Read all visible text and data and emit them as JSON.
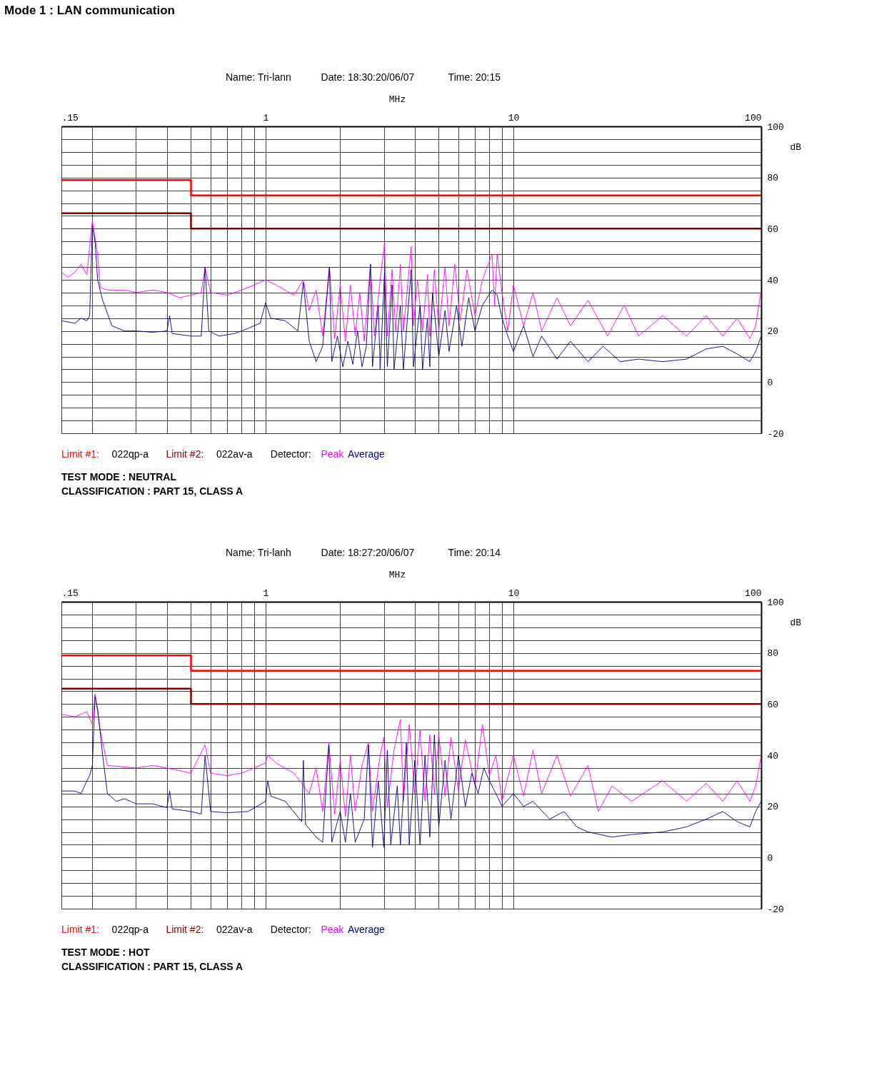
{
  "chart_data": [
    {
      "type": "line",
      "title": "Mode 1 : LAN communication",
      "xlabel": "MHz",
      "ylabel": "dB",
      "log": "x",
      "grid": true,
      "xlim": [
        0.15,
        100
      ],
      "ylim": [
        -20,
        100
      ],
      "xticks": [
        {
          "value": 0.15,
          "label": ".15"
        },
        {
          "value": 0.2,
          "label": null
        },
        {
          "value": 0.3,
          "label": null
        },
        {
          "value": 0.4,
          "label": null
        },
        {
          "value": 0.5,
          "label": null
        },
        {
          "value": 0.6,
          "label": null
        },
        {
          "value": 0.7,
          "label": null
        },
        {
          "value": 0.8,
          "label": null
        },
        {
          "value": 0.9,
          "label": null
        },
        1,
        {
          "value": 2,
          "label": null
        },
        {
          "value": 3,
          "label": null
        },
        {
          "value": 4,
          "label": null
        },
        {
          "value": 5,
          "label": null
        },
        {
          "value": 6,
          "label": null
        },
        {
          "value": 7,
          "label": null
        },
        {
          "value": 8,
          "label": null
        },
        {
          "value": 9,
          "label": null
        },
        10,
        100
      ],
      "yticks": [
        -20,
        {
          "value": -15,
          "label": null
        },
        {
          "value": -10,
          "label": null
        },
        {
          "value": -5,
          "label": null
        },
        0,
        {
          "value": 5,
          "label": null
        },
        {
          "value": 10,
          "label": null
        },
        {
          "value": 15,
          "label": null
        },
        20,
        {
          "value": 25,
          "label": null
        },
        {
          "value": 30,
          "label": null
        },
        {
          "value": 35,
          "label": null
        },
        40,
        {
          "value": 45,
          "label": null
        },
        {
          "value": 50,
          "label": null
        },
        {
          "value": 55,
          "label": null
        },
        60,
        {
          "value": 65,
          "label": null
        },
        {
          "value": 70,
          "label": null
        },
        {
          "value": 75,
          "label": null
        },
        80,
        {
          "value": 85,
          "label": null
        },
        {
          "value": 90,
          "label": null
        },
        {
          "value": 95,
          "label": null
        },
        100
      ],
      "annotations": [
        "Name: Tri-lann",
        "Date: 18:30:20/06/07",
        "Time: 20:15",
        "022qp-a",
        "022av-a",
        "Detector:",
        "TEST MODE : NEUTRAL",
        "CLASSIFICATION : PART 15, CLASS A"
      ],
      "series": [
        {
          "name": "Limit #1:",
          "type": "step",
          "color": "#ff0000",
          "x": [
            0.15,
            0.5,
            100
          ],
          "values": [
            79,
            73,
            73
          ]
        },
        {
          "name": "Limit #2:",
          "type": "step",
          "color": "#800000",
          "x": [
            0.15,
            0.5,
            100
          ],
          "values": [
            66,
            60,
            60
          ]
        },
        {
          "name": "Peak",
          "type": "line",
          "color": "#ff00ff",
          "x": [
            0.15,
            0.16,
            0.17,
            0.18,
            0.19,
            0.2,
            0.21,
            0.215,
            0.23,
            0.27,
            0.3,
            0.35,
            0.4,
            0.45,
            0.5,
            0.55,
            0.57,
            0.6,
            0.7,
            0.8,
            0.9,
            1.0,
            1.1,
            1.3,
            1.42,
            1.5,
            1.6,
            1.7,
            1.81,
            1.9,
            2.0,
            2.1,
            2.2,
            2.3,
            2.4,
            2.5,
            2.65,
            2.75,
            2.9,
            3.02,
            3.1,
            3.24,
            3.35,
            3.5,
            3.6,
            3.87,
            3.95,
            4.1,
            4.3,
            4.5,
            4.6,
            4.8,
            5.0,
            5.3,
            5.5,
            5.8,
            6.1,
            6.5,
            7.0,
            7.5,
            8.2,
            8.4,
            8.6,
            9.0,
            9.5,
            10,
            11,
            12,
            13,
            15,
            17,
            20,
            24,
            28,
            32,
            40,
            50,
            60,
            70,
            80,
            90,
            95,
            100
          ],
          "values": [
            43,
            41,
            43,
            46,
            42,
            63,
            50,
            37,
            36,
            36,
            35,
            36,
            35,
            33,
            34,
            35,
            45,
            35,
            34,
            36,
            38,
            40,
            38,
            34,
            40,
            28,
            36,
            18,
            45,
            17,
            38,
            16,
            38,
            18,
            35,
            16,
            46,
            18,
            40,
            54,
            18,
            44,
            20,
            46,
            20,
            53,
            22,
            40,
            20,
            42,
            18,
            44,
            20,
            45,
            22,
            46,
            24,
            44,
            26,
            40,
            50,
            30,
            50,
            35,
            20,
            38,
            22,
            35,
            20,
            33,
            22,
            32,
            18,
            30,
            18,
            26,
            18,
            26,
            18,
            25,
            17,
            22,
            36
          ]
        },
        {
          "name": "Average",
          "type": "line",
          "color": "#000080",
          "x": [
            0.15,
            0.17,
            0.18,
            0.19,
            0.195,
            0.2,
            0.205,
            0.21,
            0.22,
            0.24,
            0.27,
            0.3,
            0.35,
            0.4,
            0.41,
            0.42,
            0.5,
            0.55,
            0.57,
            0.59,
            0.65,
            0.75,
            0.85,
            0.95,
            1.0,
            1.05,
            1.2,
            1.35,
            1.42,
            1.5,
            1.6,
            1.7,
            1.81,
            1.85,
            1.95,
            2.05,
            2.15,
            2.25,
            2.35,
            2.45,
            2.55,
            2.65,
            2.7,
            2.85,
            2.9,
            3.02,
            3.1,
            3.24,
            3.3,
            3.5,
            3.6,
            3.87,
            3.95,
            4.2,
            4.3,
            4.5,
            4.6,
            4.72,
            5.0,
            5.3,
            5.5,
            5.9,
            6.2,
            6.6,
            7.0,
            7.5,
            8.2,
            8.6,
            9.0,
            9.5,
            10,
            11,
            12,
            13,
            15,
            17,
            20,
            23,
            27,
            32,
            40,
            50,
            60,
            70,
            80,
            90,
            95,
            100
          ],
          "values": [
            24,
            23,
            25,
            24,
            26,
            61,
            55,
            40,
            32,
            22,
            20,
            20,
            19.5,
            20,
            26,
            19,
            18,
            18,
            45,
            20,
            18,
            19,
            21,
            23,
            31,
            25,
            24,
            20,
            39,
            16,
            8,
            14,
            45,
            8,
            18,
            6,
            16,
            7,
            20,
            6,
            14,
            46,
            6,
            30,
            5,
            43,
            6,
            38,
            5,
            30,
            5,
            44,
            6,
            30,
            5,
            25,
            6,
            35,
            10,
            28,
            12,
            30,
            14,
            33,
            20,
            30,
            36,
            34,
            25,
            18,
            12,
            22,
            10,
            18,
            9,
            16,
            8,
            14,
            8,
            9,
            8,
            9,
            13,
            14,
            11,
            8,
            12,
            18
          ]
        }
      ]
    },
    {
      "type": "line",
      "xlabel": "MHz",
      "ylabel": "dB",
      "log": "x",
      "grid": true,
      "xlim": [
        0.15,
        100
      ],
      "ylim": [
        -20,
        100
      ],
      "xticks": [
        {
          "value": 0.15,
          "label": ".15"
        },
        {
          "value": 0.2,
          "label": null
        },
        {
          "value": 0.3,
          "label": null
        },
        {
          "value": 0.4,
          "label": null
        },
        {
          "value": 0.5,
          "label": null
        },
        {
          "value": 0.6,
          "label": null
        },
        {
          "value": 0.7,
          "label": null
        },
        {
          "value": 0.8,
          "label": null
        },
        {
          "value": 0.9,
          "label": null
        },
        1,
        {
          "value": 2,
          "label": null
        },
        {
          "value": 3,
          "label": null
        },
        {
          "value": 4,
          "label": null
        },
        {
          "value": 5,
          "label": null
        },
        {
          "value": 6,
          "label": null
        },
        {
          "value": 7,
          "label": null
        },
        {
          "value": 8,
          "label": null
        },
        {
          "value": 9,
          "label": null
        },
        10,
        100
      ],
      "yticks": [
        -20,
        {
          "value": -15,
          "label": null
        },
        {
          "value": -10,
          "label": null
        },
        {
          "value": -5,
          "label": null
        },
        0,
        {
          "value": 5,
          "label": null
        },
        {
          "value": 10,
          "label": null
        },
        {
          "value": 15,
          "label": null
        },
        20,
        {
          "value": 25,
          "label": null
        },
        {
          "value": 30,
          "label": null
        },
        {
          "value": 35,
          "label": null
        },
        40,
        {
          "value": 45,
          "label": null
        },
        {
          "value": 50,
          "label": null
        },
        {
          "value": 55,
          "label": null
        },
        60,
        {
          "value": 65,
          "label": null
        },
        {
          "value": 70,
          "label": null
        },
        {
          "value": 75,
          "label": null
        },
        80,
        {
          "value": 85,
          "label": null
        },
        {
          "value": 90,
          "label": null
        },
        {
          "value": 95,
          "label": null
        },
        100
      ],
      "annotations": [
        "Name: Tri-lanh",
        "Date: 18:27:20/06/07",
        "Time: 20:14",
        "022qp-a",
        "022av-a",
        "Detector:",
        "TEST MODE : HOT",
        "CLASSIFICATION : PART 15, CLASS A"
      ],
      "series": [
        {
          "name": "Limit #1:",
          "type": "step",
          "color": "#ff0000",
          "x": [
            0.15,
            0.5,
            100
          ],
          "values": [
            79,
            73,
            73
          ]
        },
        {
          "name": "Limit #2:",
          "type": "step",
          "color": "#800000",
          "x": [
            0.15,
            0.5,
            100
          ],
          "values": [
            66,
            60,
            60
          ]
        },
        {
          "name": "Peak",
          "type": "line",
          "color": "#ff00ff",
          "x": [
            0.15,
            0.17,
            0.19,
            0.2,
            0.205,
            0.215,
            0.23,
            0.3,
            0.35,
            0.4,
            0.5,
            0.57,
            0.6,
            0.7,
            0.8,
            0.9,
            1.0,
            1.02,
            1.1,
            1.3,
            1.5,
            1.6,
            1.7,
            1.8,
            1.9,
            2.0,
            2.1,
            2.2,
            2.3,
            2.45,
            2.6,
            2.7,
            2.9,
            3.0,
            3.1,
            3.3,
            3.5,
            3.6,
            3.8,
            4.0,
            4.2,
            4.4,
            4.6,
            4.8,
            5.0,
            5.3,
            5.6,
            6.0,
            6.4,
            7.0,
            7.5,
            8.0,
            8.5,
            9,
            10,
            11,
            12,
            13,
            15,
            17,
            20,
            22,
            25,
            30,
            40,
            50,
            60,
            70,
            80,
            90,
            95,
            100
          ],
          "values": [
            56,
            55,
            57,
            52,
            64,
            50,
            36,
            35,
            36,
            35,
            33,
            44,
            33,
            32,
            33,
            35,
            37,
            40,
            37,
            33,
            25,
            35,
            18,
            45,
            17,
            38,
            16,
            40,
            18,
            36,
            45,
            18,
            40,
            47,
            20,
            42,
            54,
            22,
            52,
            25,
            50,
            22,
            48,
            25,
            48,
            24,
            47,
            26,
            46,
            28,
            52,
            32,
            40,
            22,
            40,
            24,
            42,
            25,
            40,
            24,
            36,
            18,
            28,
            22,
            30,
            22,
            29,
            22,
            30,
            22,
            28,
            40
          ]
        },
        {
          "name": "Average",
          "type": "line",
          "color": "#000080",
          "x": [
            0.15,
            0.17,
            0.18,
            0.19,
            0.195,
            0.2,
            0.205,
            0.21,
            0.22,
            0.23,
            0.25,
            0.27,
            0.3,
            0.35,
            0.4,
            0.41,
            0.42,
            0.5,
            0.55,
            0.57,
            0.6,
            0.7,
            0.85,
            1.0,
            1.02,
            1.05,
            1.2,
            1.4,
            1.42,
            1.45,
            1.6,
            1.7,
            1.8,
            1.85,
            2.0,
            2.1,
            2.2,
            2.3,
            2.5,
            2.6,
            2.7,
            2.85,
            3.0,
            3.1,
            3.2,
            3.4,
            3.5,
            3.7,
            3.8,
            4.0,
            4.2,
            4.4,
            4.6,
            4.8,
            5.0,
            5.3,
            5.6,
            6.0,
            6.4,
            6.8,
            7.2,
            7.6,
            8.0,
            8.5,
            9,
            10,
            11,
            12,
            14,
            16,
            18,
            20,
            25,
            30,
            40,
            50,
            60,
            70,
            80,
            90,
            95,
            100
          ],
          "values": [
            26,
            26,
            25,
            30,
            32,
            36,
            63,
            58,
            40,
            25,
            22,
            23,
            21,
            21,
            19.5,
            26,
            19,
            18,
            17,
            40,
            18,
            17.5,
            18,
            22,
            30,
            24,
            22,
            14,
            38,
            13,
            8,
            6,
            44,
            6,
            18,
            6,
            25,
            6,
            15,
            44,
            4,
            30,
            4,
            42,
            5,
            28,
            5,
            45,
            5,
            38,
            5,
            40,
            8,
            48,
            12,
            38,
            15,
            40,
            20,
            33,
            25,
            35,
            30,
            25,
            20,
            25,
            20,
            22,
            15,
            18,
            12,
            10,
            8,
            9,
            10,
            12,
            15,
            18,
            14,
            12,
            18,
            22
          ]
        }
      ]
    }
  ]
}
